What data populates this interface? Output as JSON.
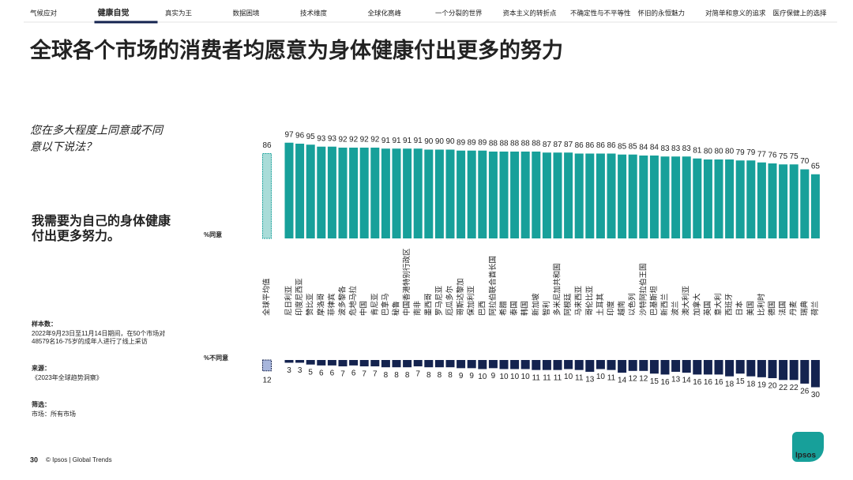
{
  "nav": {
    "items": [
      "气候应对",
      "健康自觉",
      "真实为王",
      "数据困境",
      "技术维度",
      "全球化高峰",
      "一个分裂的世界",
      "资本主义的转折点",
      "不确定性与不平等性",
      "怀旧的永恒魅力",
      "对简单和意义的追求",
      "医疗保健上的选择"
    ],
    "active": 1
  },
  "title": "全球各个市场的消费者均愿意为身体健康付出更多的努力",
  "question": [
    "您在多大程度上同意或不同",
    "意以下说法？"
  ],
  "statement": [
    "我需要为自己的身体健康",
    "付出更多努力。"
  ],
  "sample": {
    "label": "样本数：",
    "lines": [
      "2022年9月23日至11月14日期间，在50个市场对",
      "48579名16-75岁的成年人进行了线上采访"
    ]
  },
  "source": {
    "label": "来源：",
    "text": "《2023年全球趋势洞察》"
  },
  "filter": {
    "label": "筛选：",
    "text": "市场：所有市场"
  },
  "footer": {
    "page": "30",
    "text": "© Ipsos | Global Trends",
    "logo": "Ipsos"
  },
  "chart_data": {
    "type": "bar",
    "categories": [
      "全球平均值",
      "尼日利亚",
      "印度尼西亚",
      "赞比亚",
      "摩洛哥",
      "菲律宾",
      "波多黎各",
      "危地马拉",
      "中国",
      "肯尼亚",
      "巴拿马",
      "秘鲁",
      "中国香港特别行政区",
      "南非",
      "墨西哥",
      "罗马尼亚",
      "厄瓜多尔",
      "哥斯达黎加",
      "保加利亚",
      "巴西",
      "阿拉伯联合酋长国",
      "希腊",
      "泰国",
      "韩国",
      "新加坡",
      "智利",
      "多米尼加共和国",
      "阿根廷",
      "马来西亚",
      "哥伦比亚",
      "土耳其",
      "印度",
      "越南",
      "以色列",
      "沙特阿拉伯王国",
      "巴基斯坦",
      "新西兰",
      "波兰",
      "澳大利亚",
      "加拿大",
      "英国",
      "意大利",
      "西班牙",
      "日本",
      "美国",
      "比利时",
      "德国",
      "法国",
      "丹麦",
      "瑞典",
      "荷兰"
    ],
    "ylim": [
      0,
      100
    ],
    "series": [
      {
        "name": "%同意",
        "color": "#17a09a",
        "average_color": "#a9dcd8",
        "values": [
          86,
          97,
          96,
          95,
          93,
          93,
          92,
          92,
          92,
          92,
          91,
          91,
          91,
          91,
          90,
          90,
          90,
          89,
          89,
          89,
          88,
          88,
          88,
          88,
          88,
          87,
          87,
          87,
          86,
          86,
          86,
          86,
          85,
          85,
          84,
          84,
          83,
          83,
          83,
          81,
          80,
          80,
          80,
          79,
          79,
          77,
          76,
          75,
          75,
          70,
          65
        ]
      },
      {
        "name": "%不同意",
        "color": "#14234f",
        "average_color": "#a8b6dc",
        "values": [
          12,
          3,
          3,
          5,
          6,
          6,
          7,
          6,
          7,
          7,
          8,
          8,
          8,
          7,
          8,
          8,
          8,
          9,
          9,
          10,
          9,
          10,
          10,
          10,
          11,
          11,
          11,
          10,
          11,
          13,
          10,
          11,
          14,
          12,
          12,
          15,
          16,
          13,
          14,
          16,
          16,
          16,
          18,
          15,
          18,
          19,
          20,
          22,
          22,
          26,
          30
        ]
      }
    ]
  }
}
